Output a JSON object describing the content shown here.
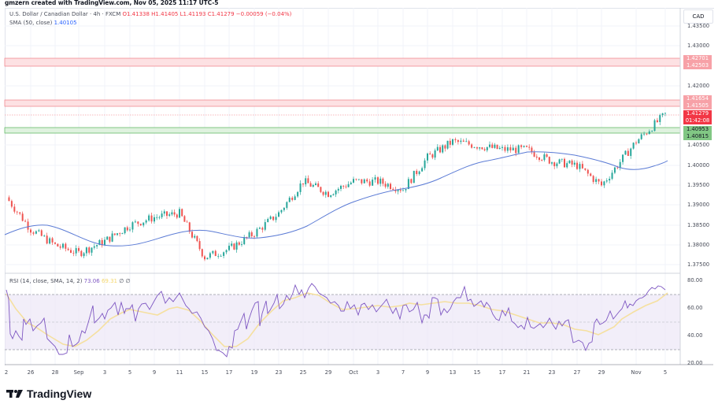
{
  "credit": "gmzern created with TradingView.com, Nov 05, 2025 11:17 UTC-5",
  "legend": {
    "symbol": "U.S. Dollar / Canadian Dollar · 4h · FXCM",
    "open": "O1.41338",
    "high": "H1.41405",
    "low": "L1.41193",
    "close": "C1.41279",
    "change": "−0.00059 (−0.04%)",
    "sma_label": "SMA (50, close)",
    "sma_value": "1.40105"
  },
  "rsi_legend": {
    "label": "RSI (14, close, SMA, 14, 2)",
    "rsi_value": "73.06",
    "ma_value": "69.31",
    "extra": "∅ ∅"
  },
  "currency": "CAD",
  "price_axis": [
    "1.43500",
    "1.43000",
    "1.42000",
    "1.40500",
    "1.40000",
    "1.39500",
    "1.39000",
    "1.38500",
    "1.38000",
    "1.37500"
  ],
  "rsi_axis": [
    "80.00",
    "60.00",
    "40.00",
    "20.00"
  ],
  "price_tags": [
    {
      "value": "1.42701",
      "color": "#f7a1a7"
    },
    {
      "value": "1.42503",
      "color": "#f7a1a7"
    },
    {
      "value": "1.41654",
      "color": "#f7a1a7"
    },
    {
      "value": "1.41505",
      "color": "#f7a1a7"
    },
    {
      "value": "1.41279",
      "sub": "01:42:08",
      "color": "#f23645"
    },
    {
      "value": "1.40953",
      "color": "#81c784"
    },
    {
      "value": "1.40815",
      "color": "#81c784"
    }
  ],
  "time_axis": [
    "2",
    "26",
    "28",
    "Sep",
    "3",
    "5",
    "9",
    "11",
    "15",
    "17",
    "19",
    "23",
    "25",
    "29",
    "Oct",
    "3",
    "7",
    "9",
    "13",
    "15",
    "17",
    "21",
    "23",
    "27",
    "29",
    "Nov",
    "5"
  ],
  "brand": "TradingView",
  "colors": {
    "up": "#26a69a",
    "down": "#ef5350",
    "sma": "#5b7bd5",
    "rsi": "#7e57c2",
    "rsi_ma": "#f5d76e",
    "resistance": "#f7a1a7",
    "support": "#81c784"
  },
  "chart_data": {
    "type": "candlestick",
    "title": "U.S. Dollar / Canadian Dollar · 4h · FXCM",
    "xlabel": "",
    "ylabel": "CAD",
    "ylim": [
      1.372,
      1.437
    ],
    "x": [
      "Aug 22",
      "Aug 26",
      "Aug 28",
      "Sep 1",
      "Sep 3",
      "Sep 5",
      "Sep 9",
      "Sep 11",
      "Sep 15",
      "Sep 17",
      "Sep 19",
      "Sep 23",
      "Sep 25",
      "Sep 29",
      "Oct 1",
      "Oct 3",
      "Oct 7",
      "Oct 9",
      "Oct 13",
      "Oct 15",
      "Oct 17",
      "Oct 21",
      "Oct 23",
      "Oct 27",
      "Oct 29",
      "Nov 3",
      "Nov 5"
    ],
    "series": [
      {
        "name": "USDCAD close (approx)",
        "values": [
          1.392,
          1.384,
          1.38,
          1.378,
          1.381,
          1.385,
          1.387,
          1.388,
          1.377,
          1.379,
          1.383,
          1.388,
          1.396,
          1.393,
          1.396,
          1.396,
          1.394,
          1.402,
          1.406,
          1.405,
          1.404,
          1.404,
          1.401,
          1.4,
          1.395,
          1.406,
          1.4128
        ]
      },
      {
        "name": "SMA (50, close)",
        "values": [
          1.384,
          1.385,
          1.384,
          1.383,
          1.382,
          1.383,
          1.384,
          1.386,
          1.385,
          1.383,
          1.382,
          1.383,
          1.386,
          1.389,
          1.392,
          1.395,
          1.397,
          1.399,
          1.401,
          1.403,
          1.404,
          1.404,
          1.403,
          1.401,
          1.399,
          1.399,
          1.4011
        ]
      },
      {
        "name": "RSI (14)",
        "values": [
          75,
          40,
          30,
          38,
          52,
          55,
          52,
          65,
          28,
          35,
          50,
          68,
          77,
          62,
          58,
          60,
          55,
          72,
          62,
          55,
          58,
          45,
          40,
          38,
          30,
          60,
          73
        ]
      },
      {
        "name": "RSI MA",
        "values": [
          72,
          55,
          35,
          33,
          42,
          48,
          55,
          60,
          40,
          32,
          38,
          55,
          70,
          68,
          62,
          60,
          58,
          62,
          65,
          58,
          56,
          50,
          45,
          42,
          35,
          40,
          69
        ]
      }
    ],
    "horizontal_zones": [
      {
        "type": "resistance",
        "from": 1.42503,
        "to": 1.42701
      },
      {
        "type": "resistance",
        "from": 1.41505,
        "to": 1.41654
      },
      {
        "type": "support",
        "from": 1.40815,
        "to": 1.40953
      }
    ],
    "last_price": 1.41279,
    "rsi_bands": [
      70,
      50,
      30
    ],
    "grid": true
  }
}
